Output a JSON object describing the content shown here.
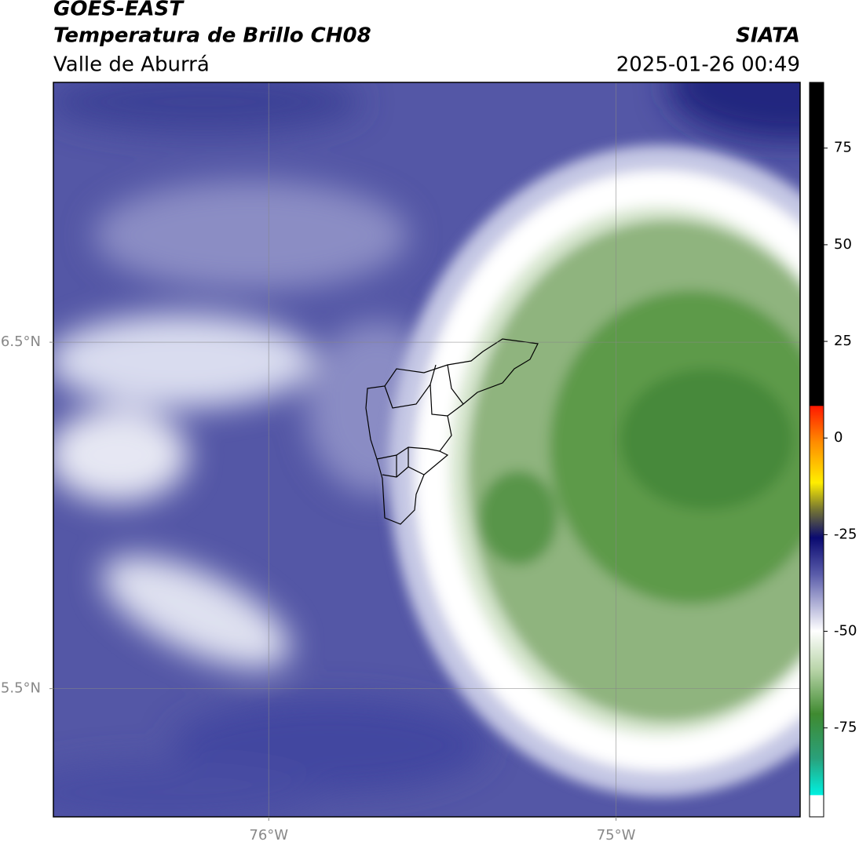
{
  "header": {
    "title": "GOES-EAST",
    "subtitle": "Temperatura de Brillo CH08",
    "region": "Valle de Aburrá",
    "source": "SIATA",
    "timestamp": "2025-01-26 00:49"
  },
  "map": {
    "xlim": [
      -76.62,
      -74.47
    ],
    "ylim": [
      5.13,
      7.25
    ],
    "xticks": [
      {
        "value": -76,
        "label": "76°W"
      },
      {
        "value": -75,
        "label": "75°W"
      }
    ],
    "yticks": [
      {
        "value": 6.5,
        "label": "6.5°N"
      },
      {
        "value": 5.5,
        "label": "5.5°N"
      }
    ],
    "grid": true
  },
  "colorbar": {
    "lim": [
      -98,
      92
    ],
    "ticks": [
      75,
      50,
      25,
      0,
      -25,
      -50,
      -75
    ]
  }
}
